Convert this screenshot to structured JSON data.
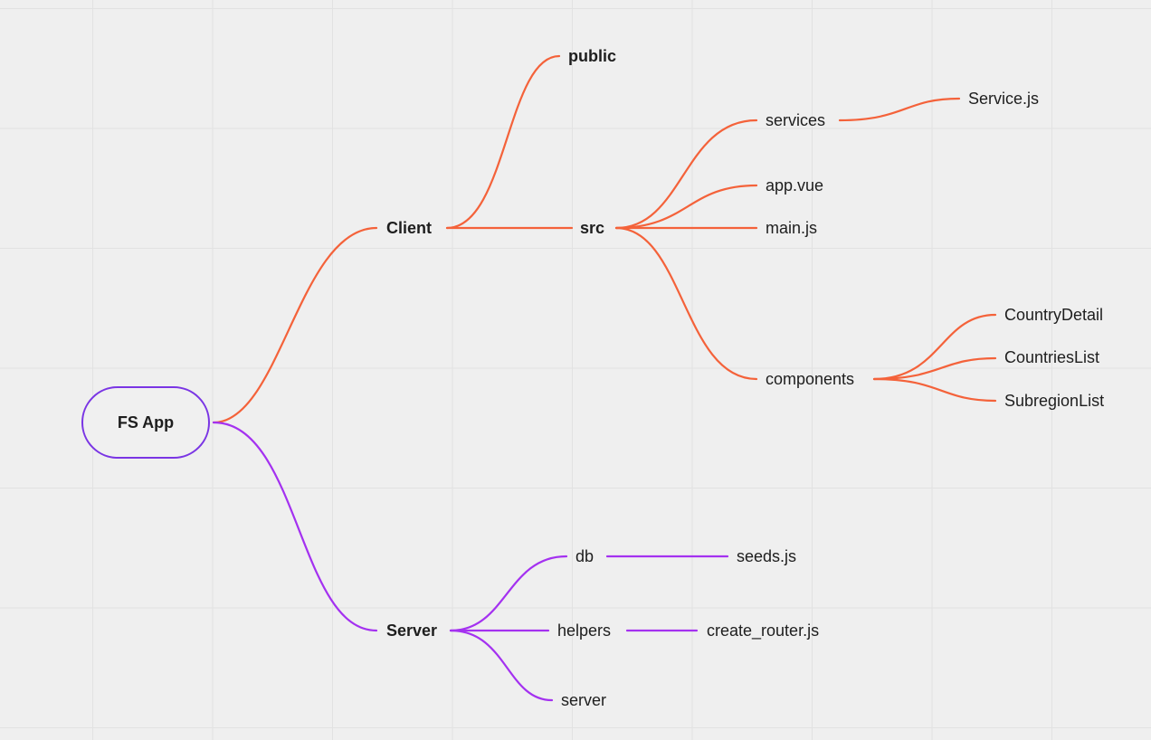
{
  "root": {
    "label": "FS App"
  },
  "client": {
    "label": "Client",
    "public": "public",
    "src": "src",
    "services": "services",
    "service_js": "Service.js",
    "app_vue": "app.vue",
    "main_js": "main.js",
    "components": "components",
    "country_detail": "CountryDetail",
    "countries_list": "CountriesList",
    "subregion_list": "SubregionList"
  },
  "server": {
    "label": "Server",
    "db": "db",
    "seeds_js": "seeds.js",
    "helpers": "helpers",
    "create_router_js": "create_router.js",
    "server": "server"
  },
  "colors": {
    "client_branch": "#f4623a",
    "server_branch": "#a431f0",
    "root_border": "#7a35e4",
    "background": "#efefef",
    "grid": "#e2e2e2"
  }
}
